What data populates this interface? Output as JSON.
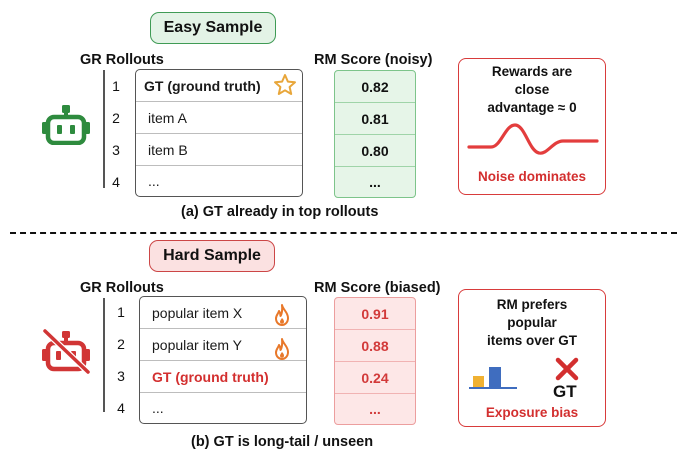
{
  "easy": {
    "title": "Easy Sample",
    "rollouts_header": "GR Rollouts",
    "score_header": "RM Score (noisy)",
    "rows": [
      {
        "num": "1",
        "label": "GT (ground truth)",
        "score": "0.82"
      },
      {
        "num": "2",
        "label": "item A",
        "score": "0.81"
      },
      {
        "num": "3",
        "label": "item B",
        "score": "0.80"
      },
      {
        "num": "4",
        "label": "...",
        "score": "..."
      }
    ],
    "box_lines": [
      "Rewards are",
      "close",
      "advantage ≈ 0"
    ],
    "box_footer": "Noise dominates",
    "caption": "(a) GT already in top rollouts"
  },
  "hard": {
    "title": "Hard Sample",
    "rollouts_header": "GR Rollouts",
    "score_header": "RM Score (biased)",
    "rows": [
      {
        "num": "1",
        "label": "popular item X",
        "score": "0.91"
      },
      {
        "num": "2",
        "label": "popular item Y",
        "score": "0.88"
      },
      {
        "num": "3",
        "label": "GT (ground truth)",
        "score": "0.24"
      },
      {
        "num": "4",
        "label": "...",
        "score": "..."
      }
    ],
    "box_lines": [
      "RM prefers",
      "popular",
      "items over GT"
    ],
    "box_gt_label": "GT",
    "box_footer": "Exposure bias",
    "caption": "(b) GT is long-tail / unseen"
  },
  "colors": {
    "easy_accent": "#3f9b55",
    "hard_accent": "#cc4646",
    "robot_green": "#2e8b3e",
    "robot_red": "#d13535",
    "star": "#e8a63a",
    "fire": "#e8782a",
    "wave": "#e33d3d"
  },
  "icons": {
    "easy_robot": "robot-icon",
    "hard_robot": "robot-crossed-icon",
    "star": "star-icon",
    "fire": "fire-icon",
    "x_mark": "x-mark-icon",
    "chart": "mini-bar-chart-icon"
  }
}
